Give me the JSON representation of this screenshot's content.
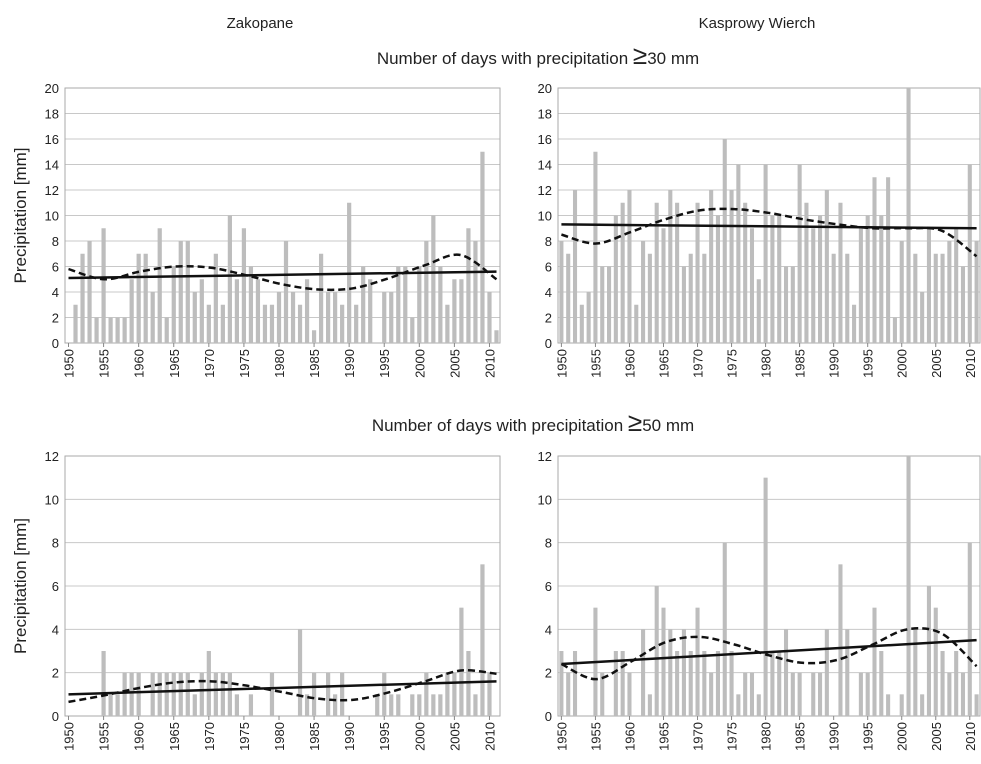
{
  "column_titles": [
    "Zakopane",
    "Kasprowy Wierch"
  ],
  "row_titles": [
    {
      "text": "Number of days with precipitation",
      "symbol": "≥",
      "suffix": "30 mm"
    },
    {
      "text": "Number of days with precipitation",
      "symbol": "≥",
      "suffix": "50 mm"
    }
  ],
  "chart_data": [
    {
      "type": "bar",
      "ylabel": "Precipitation [mm]",
      "color": "#bdbdbd",
      "grid": true,
      "categories": [
        1950,
        null,
        null,
        null,
        null,
        1955,
        null,
        null,
        null,
        null,
        1960,
        null,
        null,
        null,
        null,
        1965,
        null,
        null,
        null,
        null,
        1970,
        null,
        null,
        null,
        null,
        1975,
        null,
        null,
        null,
        null,
        1980,
        null,
        null,
        null,
        null,
        1985,
        null,
        null,
        null,
        null,
        1990,
        null,
        null,
        null,
        null,
        1995,
        null,
        null,
        null,
        null,
        2000,
        null,
        null,
        null,
        null,
        2005,
        null,
        null,
        null,
        null,
        2010,
        null
      ],
      "values": [
        0,
        3,
        7,
        8,
        2,
        9,
        2,
        2,
        2,
        5,
        7,
        7,
        4,
        9,
        2,
        6,
        8,
        8,
        4,
        5,
        3,
        7,
        3,
        10,
        5,
        9,
        6,
        5,
        3,
        3,
        4,
        8,
        4,
        3,
        5,
        1,
        7,
        4,
        4,
        3,
        11,
        3,
        6,
        5,
        0,
        4,
        4,
        6,
        6,
        2,
        6,
        8,
        10,
        6,
        3,
        5,
        5,
        9,
        8,
        15,
        4,
        1
      ],
      "trend": [
        5.1,
        5.6
      ],
      "smooth_trend": [
        5.8,
        5.0,
        5.6,
        6.0,
        5.9,
        5.3,
        4.6,
        4.2,
        4.3,
        5.1,
        6.1,
        6.9,
        5.0
      ],
      "ylim": [
        0,
        20
      ],
      "yticks": [
        0,
        2,
        4,
        6,
        8,
        10,
        12,
        14,
        16,
        18,
        20
      ]
    },
    {
      "type": "bar",
      "color": "#bdbdbd",
      "grid": true,
      "categories": [
        1950,
        null,
        null,
        null,
        null,
        1955,
        null,
        null,
        null,
        null,
        1960,
        null,
        null,
        null,
        null,
        1965,
        null,
        null,
        null,
        null,
        1970,
        null,
        null,
        null,
        null,
        1975,
        null,
        null,
        null,
        null,
        1980,
        null,
        null,
        null,
        null,
        1985,
        null,
        null,
        null,
        null,
        1990,
        null,
        null,
        null,
        null,
        1995,
        null,
        null,
        null,
        null,
        2000,
        null,
        null,
        null,
        null,
        2005,
        null,
        null,
        null,
        null,
        2010,
        null
      ],
      "values": [
        8,
        7,
        12,
        3,
        4,
        15,
        6,
        6,
        10,
        11,
        12,
        3,
        8,
        7,
        11,
        9,
        12,
        11,
        6,
        7,
        11,
        7,
        12,
        10,
        16,
        12,
        14,
        11,
        9,
        5,
        14,
        10,
        10,
        6,
        6,
        14,
        11,
        9,
        10,
        12,
        7,
        11,
        7,
        3,
        9,
        10,
        13,
        10,
        13,
        2,
        8,
        20,
        7,
        4,
        9,
        7,
        7,
        8,
        9,
        6,
        14,
        8
      ],
      "trend": [
        9.3,
        9.0
      ],
      "smooth_trend": [
        8.5,
        7.8,
        8.7,
        9.7,
        10.4,
        10.5,
        10.2,
        9.7,
        9.3,
        9.0,
        9.0,
        8.8,
        6.8
      ],
      "ylim": [
        0,
        20
      ],
      "yticks": [
        0,
        2,
        4,
        6,
        8,
        10,
        12,
        14,
        16,
        18,
        20
      ]
    },
    {
      "type": "bar",
      "ylabel": "Precipitation [mm]",
      "color": "#bdbdbd",
      "grid": true,
      "categories": [
        1950,
        null,
        null,
        null,
        null,
        1955,
        null,
        null,
        null,
        null,
        1960,
        null,
        null,
        null,
        null,
        1965,
        null,
        null,
        null,
        null,
        1970,
        null,
        null,
        null,
        null,
        1975,
        null,
        null,
        null,
        null,
        1980,
        null,
        null,
        null,
        null,
        1985,
        null,
        null,
        null,
        null,
        1990,
        null,
        null,
        null,
        null,
        1995,
        null,
        null,
        null,
        null,
        2000,
        null,
        null,
        null,
        null,
        2005,
        null,
        null,
        null,
        null,
        2010,
        null
      ],
      "values": [
        0,
        0,
        0,
        0,
        0,
        3,
        1,
        1,
        2,
        2,
        2,
        0,
        2,
        2,
        2,
        2,
        2,
        2,
        1,
        2,
        3,
        2,
        2,
        2,
        1,
        0,
        1,
        0,
        0,
        2,
        0,
        0,
        0,
        4,
        1,
        2,
        0,
        2,
        1,
        2,
        0,
        0,
        0,
        0,
        1,
        2,
        1,
        1,
        0,
        1,
        1,
        2,
        1,
        1,
        2,
        2,
        5,
        3,
        1,
        7,
        2,
        0
      ],
      "trend": [
        1.0,
        1.6
      ],
      "smooth_trend": [
        0.65,
        0.95,
        1.3,
        1.55,
        1.6,
        1.4,
        1.1,
        0.8,
        0.75,
        1.1,
        1.6,
        2.1,
        1.95
      ],
      "ylim": [
        0,
        12
      ],
      "yticks": [
        0,
        2,
        4,
        6,
        8,
        10,
        12
      ]
    },
    {
      "type": "bar",
      "color": "#bdbdbd",
      "grid": true,
      "categories": [
        1950,
        null,
        null,
        null,
        null,
        1955,
        null,
        null,
        null,
        null,
        1960,
        null,
        null,
        null,
        null,
        1965,
        null,
        null,
        null,
        null,
        1970,
        null,
        null,
        null,
        null,
        1975,
        null,
        null,
        null,
        null,
        1980,
        null,
        null,
        null,
        null,
        1985,
        null,
        null,
        null,
        null,
        1990,
        null,
        null,
        null,
        null,
        1995,
        null,
        null,
        null,
        null,
        2000,
        null,
        null,
        null,
        null,
        2005,
        null,
        null,
        null,
        null,
        2010,
        null
      ],
      "values": [
        3,
        2,
        3,
        0,
        0,
        5,
        2,
        0,
        3,
        3,
        2,
        0,
        4,
        1,
        6,
        5,
        4,
        3,
        4,
        3,
        5,
        3,
        2,
        3,
        8,
        3,
        1,
        2,
        2,
        1,
        11,
        3,
        3,
        4,
        2,
        2,
        0,
        2,
        2,
        4,
        0,
        7,
        4,
        0,
        2,
        2,
        5,
        3,
        1,
        0,
        1,
        12,
        4,
        1,
        6,
        5,
        3,
        2,
        3,
        2,
        8,
        1
      ],
      "trend": [
        2.4,
        3.5
      ],
      "smooth_trend": [
        2.4,
        1.7,
        2.5,
        3.4,
        3.65,
        3.3,
        2.8,
        2.45,
        2.6,
        3.3,
        4.0,
        3.8,
        2.3
      ],
      "ylim": [
        0,
        12
      ],
      "yticks": [
        0,
        2,
        4,
        6,
        8,
        10,
        12
      ]
    }
  ]
}
